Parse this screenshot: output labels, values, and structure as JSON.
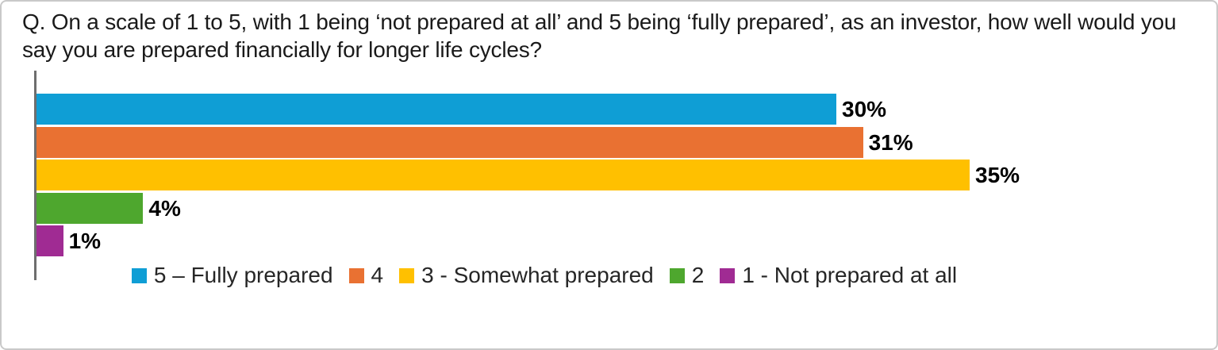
{
  "frame": {
    "background": "#FFFFFF",
    "border_color": "#C9C9C9"
  },
  "chart_data": {
    "type": "bar",
    "orientation": "horizontal",
    "title": "Q. On a scale of 1 to 5, with 1 being ‘not prepared at all’ and 5 being ‘fully prepared’, as an investor, how well would you say you are prepared financially for longer life cycles?",
    "categories": [
      "5 – Fully prepared",
      "4",
      "3 - Somewhat prepared",
      "2",
      "1 - Not prepared at all"
    ],
    "values": [
      30,
      31,
      35,
      4,
      1
    ],
    "data_labels": [
      "30%",
      "31%",
      "35%",
      "4%",
      "1%"
    ],
    "colors": [
      "#0F9ED5",
      "#E97132",
      "#FFC000",
      "#4EA72E",
      "#A02B93"
    ],
    "value_unit": "%",
    "xlim": [
      0,
      35
    ],
    "grid": false,
    "x_axis_ticks_visible": false,
    "baseline_color": "#6E6E6E",
    "legend_position": "bottom",
    "legend": [
      {
        "label": "5 – Fully prepared",
        "color": "#0F9ED5"
      },
      {
        "label": "4",
        "color": "#E97132"
      },
      {
        "label": "3 - Somewhat prepared",
        "color": "#FFC000"
      },
      {
        "label": "2",
        "color": "#4EA72E"
      },
      {
        "label": "1 - Not prepared at all",
        "color": "#A02B93"
      }
    ]
  }
}
